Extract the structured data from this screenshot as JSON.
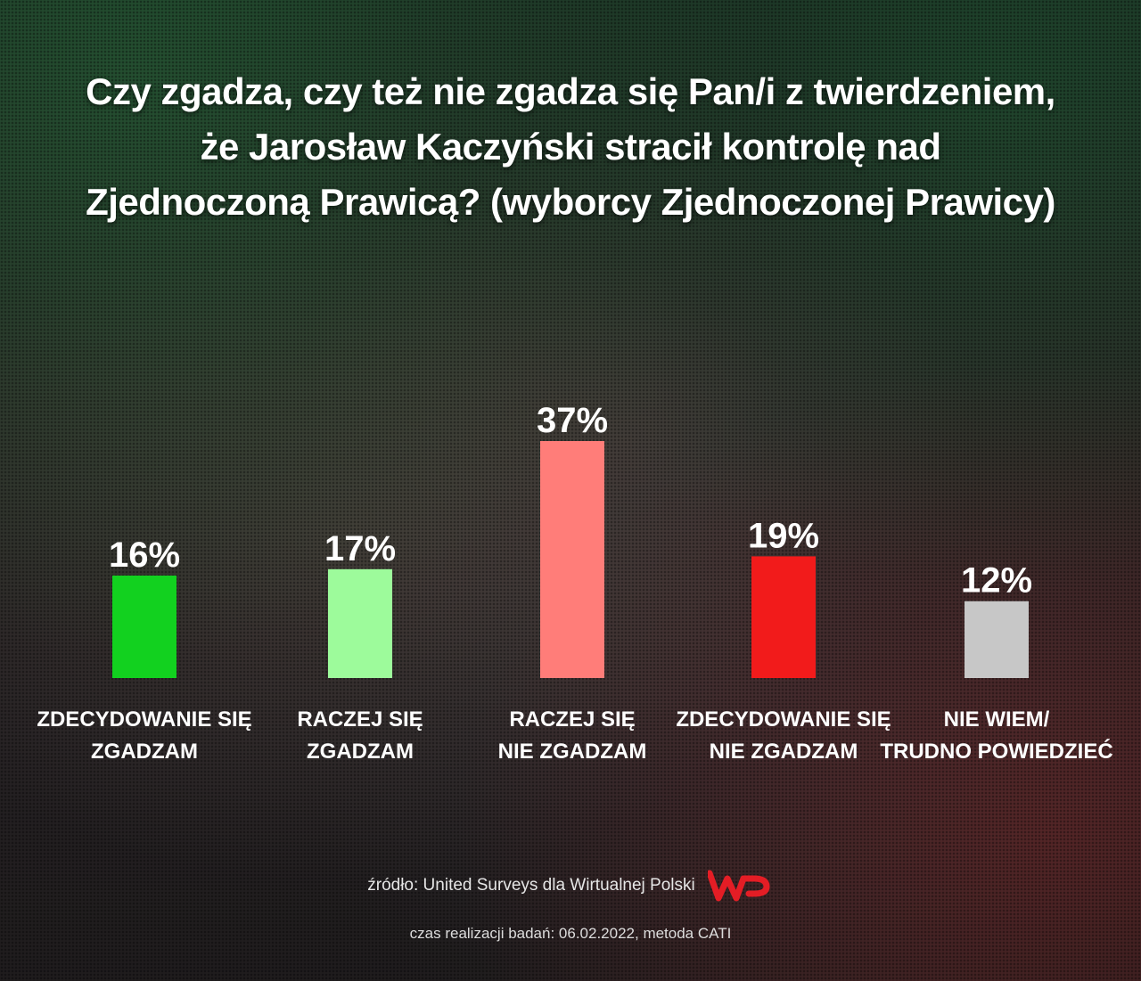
{
  "title_lines": [
    "Czy zgadza, czy też nie zgadza się Pan/i z twierdzeniem,",
    "że Jarosław Kaczyński stracił kontrolę nad",
    "Zjednoczoną Prawicą? (wyborcy Zjednoczonej Prawicy)"
  ],
  "chart_data": {
    "type": "bar",
    "title": "Czy zgadza, czy też nie zgadza się Pan/i z twierdzeniem, że Jarosław Kaczyński stracił kontrolę nad Zjednoczoną Prawicą? (wyborcy Zjednoczonej Prawicy)",
    "categories": [
      [
        "ZDECYDOWANIE SIĘ",
        "ZGADZAM"
      ],
      [
        "RACZEJ SIĘ",
        "ZGADZAM"
      ],
      [
        "RACZEJ SIĘ",
        "NIE ZGADZAM"
      ],
      [
        "ZDECYDOWANIE SIĘ",
        "NIE ZGADZAM"
      ],
      [
        "NIE WIEM/",
        "TRUDNO POWIEDZIEĆ"
      ]
    ],
    "values": [
      16,
      17,
      37,
      19,
      12
    ],
    "value_labels": [
      "16%",
      "17%",
      "37%",
      "19%",
      "12%"
    ],
    "colors": [
      "#12d11f",
      "#9dfb9b",
      "#ff7d79",
      "#f21b1b",
      "#c7c7c7"
    ],
    "unit": "%",
    "ylim": [
      0,
      37
    ],
    "grid": false,
    "legend": "none"
  },
  "footer": {
    "source": "źródło: United Surveys dla Wirtualnej Polski",
    "logo": "WP",
    "logo_color": "#e41d25",
    "time": "czas realizacji badań: 06.02.2022, metoda CATI"
  }
}
